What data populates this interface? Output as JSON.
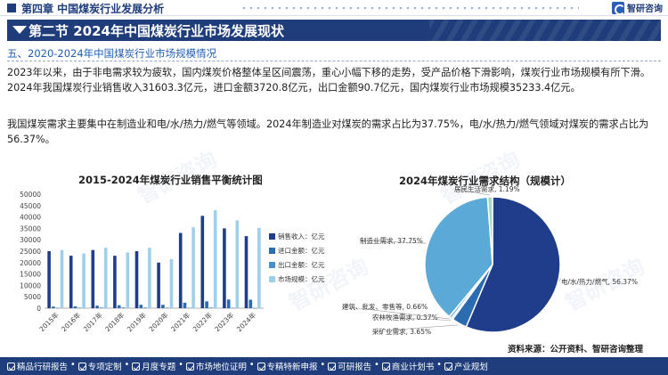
{
  "header": {
    "chapter": "第四章 中国煤炭行业发展分析",
    "logo_text": "智研咨询"
  },
  "banner": {
    "title": "第二节 2024年中国煤炭行业市场发展现状"
  },
  "section": {
    "title": "五、2020-2024年中国煤炭行业市场规模情况"
  },
  "paragraphs": [
    "2023年以来，由于非电需求较为疲软，国内煤炭价格整体呈区间震荡，重心小幅下移的走势，受产品价格下滑影响，煤炭行业市场规模有所下滑。2024年我国煤炭行业销售收入31603.3亿元，进口金额3720.8亿元，出口金额90.7亿元，国内煤炭行业市场规模35233.4亿元。",
    "我国煤炭需求主要集中在制造业和电/水/热力/燃气等领域。2024年制造业对煤炭的需求占比为37.75%，电/水/热力/燃气领域对煤炭的需求占比为56.37%。"
  ],
  "watermark": "智研咨询",
  "chart_data": [
    {
      "type": "bar",
      "title": "2015-2024年煤炭行业销售平衡统计图",
      "categories": [
        "2015年",
        "2016年",
        "2017年",
        "2018年",
        "2019年",
        "2020年",
        "2021年",
        "2022年",
        "2023年",
        "2024年"
      ],
      "ylim": [
        0,
        50000
      ],
      "yticks": [
        "0",
        "5000",
        "10000",
        "15000",
        "20000",
        "25000",
        "30000",
        "35000",
        "40000",
        "45000",
        "50000"
      ],
      "series": [
        {
          "name": "销售收入：亿元",
          "color": "#1f3d8a",
          "values": [
            25000,
            23000,
            25500,
            23000,
            25000,
            20000,
            33000,
            40500,
            35000,
            31603.3
          ]
        },
        {
          "name": "进口金额：亿元",
          "color": "#2b6cb0",
          "values": [
            700,
            800,
            1100,
            1300,
            1500,
            1500,
            2400,
            3000,
            3800,
            3720.8
          ]
        },
        {
          "name": "出口金额：亿元",
          "color": "#4a90c8",
          "values": [
            200,
            250,
            300,
            350,
            300,
            250,
            200,
            300,
            150,
            90.7
          ]
        },
        {
          "name": "市场规模：亿元",
          "color": "#9ed0ec",
          "values": [
            25500,
            24000,
            26500,
            24500,
            26500,
            21500,
            35500,
            43000,
            38500,
            35233.4
          ]
        }
      ]
    },
    {
      "type": "pie",
      "title": "2024年煤炭行业需求结构（规模计）",
      "slices": [
        {
          "label": "电/水/热力/燃气, 56.37%",
          "value": 56.37,
          "color": "#1f3d8a"
        },
        {
          "label": "采矿业需求, 3.65%",
          "value": 3.65,
          "color": "#2b6cb0"
        },
        {
          "label": "农林牧渔需求, 0.37%",
          "value": 0.37,
          "color": "#4a90c8"
        },
        {
          "label": "建筑、批发、零售等, 0.66%",
          "value": 0.66,
          "color": "#7fb8dc"
        },
        {
          "label": "制造业需求, 37.75%",
          "value": 37.75,
          "color": "#5aa9d6"
        },
        {
          "label": "居民生活需求, 1.19%",
          "value": 1.19,
          "color": "#a6d8c0"
        }
      ]
    }
  ],
  "source": "资料来源：公开资料、智研咨询整理",
  "footer": {
    "items": [
      "精品行研报告",
      "专项定制",
      "月度专题",
      "市场地位证明",
      "专精特新申报",
      "可研报告",
      "商业计划书",
      "产业规划"
    ]
  }
}
